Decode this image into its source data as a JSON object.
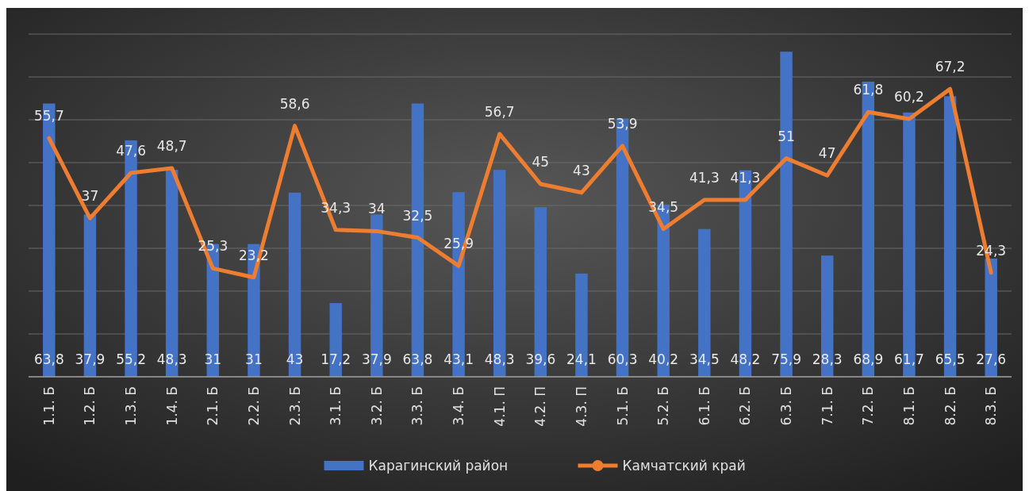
{
  "chart_data": {
    "type": "bar",
    "categories": [
      "1.1. Б",
      "1.2. Б",
      "1.3. Б",
      "1.4. Б",
      "2.1. Б",
      "2.2. Б",
      "2.3. Б",
      "3.1. Б",
      "3.2. Б",
      "3.3. Б",
      "3.4. Б",
      "4.1. П",
      "4.2. П",
      "4.3. П",
      "5.1. Б",
      "5.2. Б",
      "6.1. Б",
      "6.2. Б",
      "6.3. Б",
      "7.1. Б",
      "7.2. Б",
      "8.1. Б",
      "8.2. Б",
      "8.3. Б"
    ],
    "series": [
      {
        "name": "Карагинский район",
        "color": "#4472c4",
        "values": [
          63.8,
          37.9,
          55.2,
          48.3,
          31,
          31,
          43,
          17.2,
          37.9,
          63.8,
          43.1,
          48.3,
          39.6,
          24.1,
          60.3,
          40.2,
          34.5,
          48.2,
          75.9,
          28.3,
          68.9,
          61.7,
          65.5,
          27.6
        ],
        "value_labels": [
          "63,8",
          "37,9",
          "55,2",
          "48,3",
          "31",
          "31",
          "43",
          "17,2",
          "37,9",
          "63,8",
          "43,1",
          "48,3",
          "39,6",
          "24,1",
          "60,3",
          "40,2",
          "34,5",
          "48,2",
          "75,9",
          "28,3",
          "68,9",
          "61,7",
          "65,5",
          "27,6"
        ]
      },
      {
        "name": "Камчатский край",
        "type": "line",
        "color": "#ed7d31",
        "values": [
          55.7,
          37,
          47.6,
          48.7,
          25.3,
          23.2,
          58.6,
          34.3,
          34,
          32.5,
          25.9,
          56.7,
          45,
          43,
          53.9,
          34.5,
          41.3,
          41.3,
          51,
          47,
          61.8,
          60.2,
          67.2,
          24.3
        ],
        "value_labels": [
          "55,7",
          "37",
          "47,6",
          "48,7",
          "25,3",
          "23,2",
          "58,6",
          "34,3",
          "34",
          "32,5",
          "25,9",
          "56,7",
          "45",
          "43",
          "53,9",
          "34,5",
          "41,3",
          "41,3",
          "51",
          "47",
          "61,8",
          "60,2",
          "67,2",
          "24,3"
        ]
      }
    ],
    "ylim": [
      0,
      80
    ],
    "yticks": [
      {
        "value": 0,
        "label": null
      },
      {
        "value": 10,
        "label": null
      },
      {
        "value": 20,
        "label": null
      },
      {
        "value": 30,
        "label": null
      },
      {
        "value": 40,
        "label": null
      },
      {
        "value": 50,
        "label": null
      },
      {
        "value": 60,
        "label": null
      },
      {
        "value": 70,
        "label": null
      },
      {
        "value": 80,
        "label": null
      }
    ],
    "tick_labels": "x",
    "grid": "y",
    "legend": "bottom"
  }
}
